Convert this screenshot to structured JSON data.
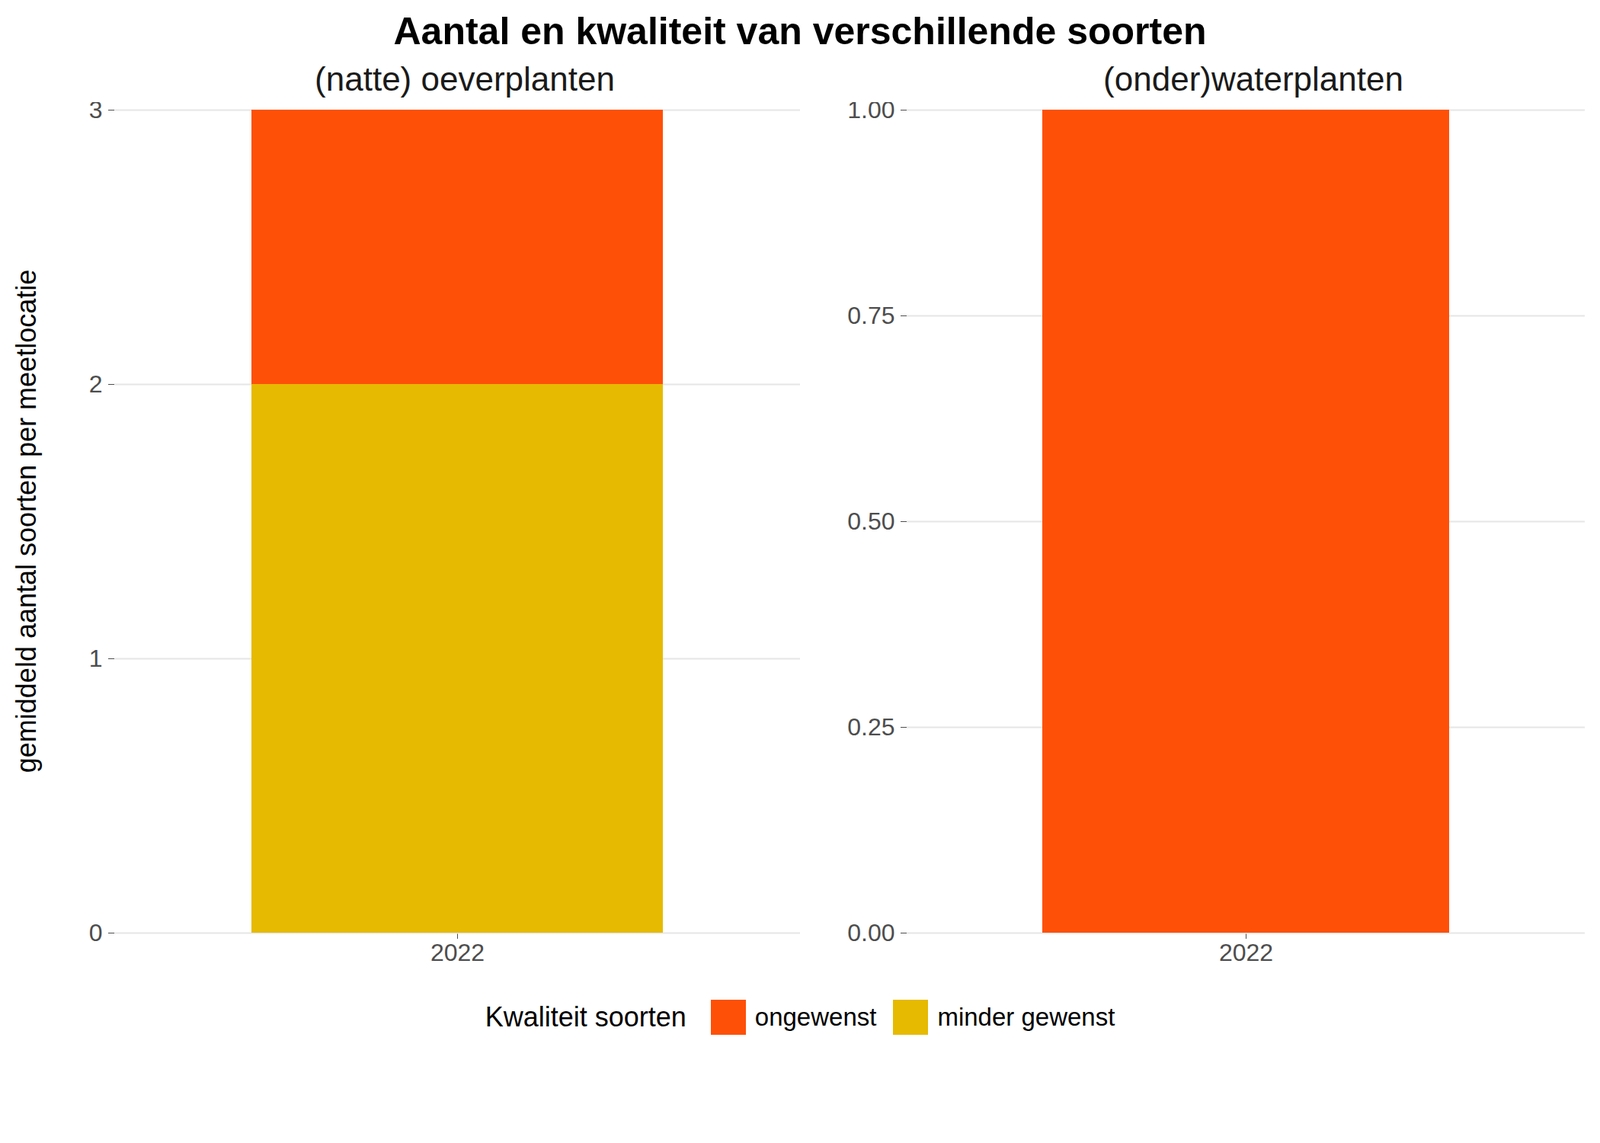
{
  "title": "Aantal en kwaliteit van verschillende soorten",
  "y_label": "gemiddeld aantal soorten per meetlocatie",
  "legend_title": "Kwaliteit soorten",
  "chart_data": [
    {
      "type": "bar",
      "stacked": true,
      "grid": true,
      "subtitle": "(natte) oeverplanten",
      "categories": [
        "2022"
      ],
      "series": [
        {
          "name": "ongewenst",
          "color": "#FF5008",
          "values": [
            1
          ]
        },
        {
          "name": "minder gewenst",
          "color": "#E6BA00",
          "values": [
            2
          ]
        }
      ],
      "ylim": [
        0,
        3
      ],
      "yticks": [
        0,
        1,
        2,
        3
      ]
    },
    {
      "type": "bar",
      "stacked": true,
      "grid": true,
      "subtitle": "(onder)waterplanten",
      "categories": [
        "2022"
      ],
      "series": [
        {
          "name": "ongewenst",
          "color": "#FF5008",
          "values": [
            1
          ]
        }
      ],
      "ylim": [
        0,
        1
      ],
      "yticks": [
        {
          "value": 0,
          "label": "0.00"
        },
        0.25,
        {
          "value": 0.5,
          "label": "0.50"
        },
        0.75,
        {
          "value": 1,
          "label": "1.00"
        }
      ]
    }
  ]
}
